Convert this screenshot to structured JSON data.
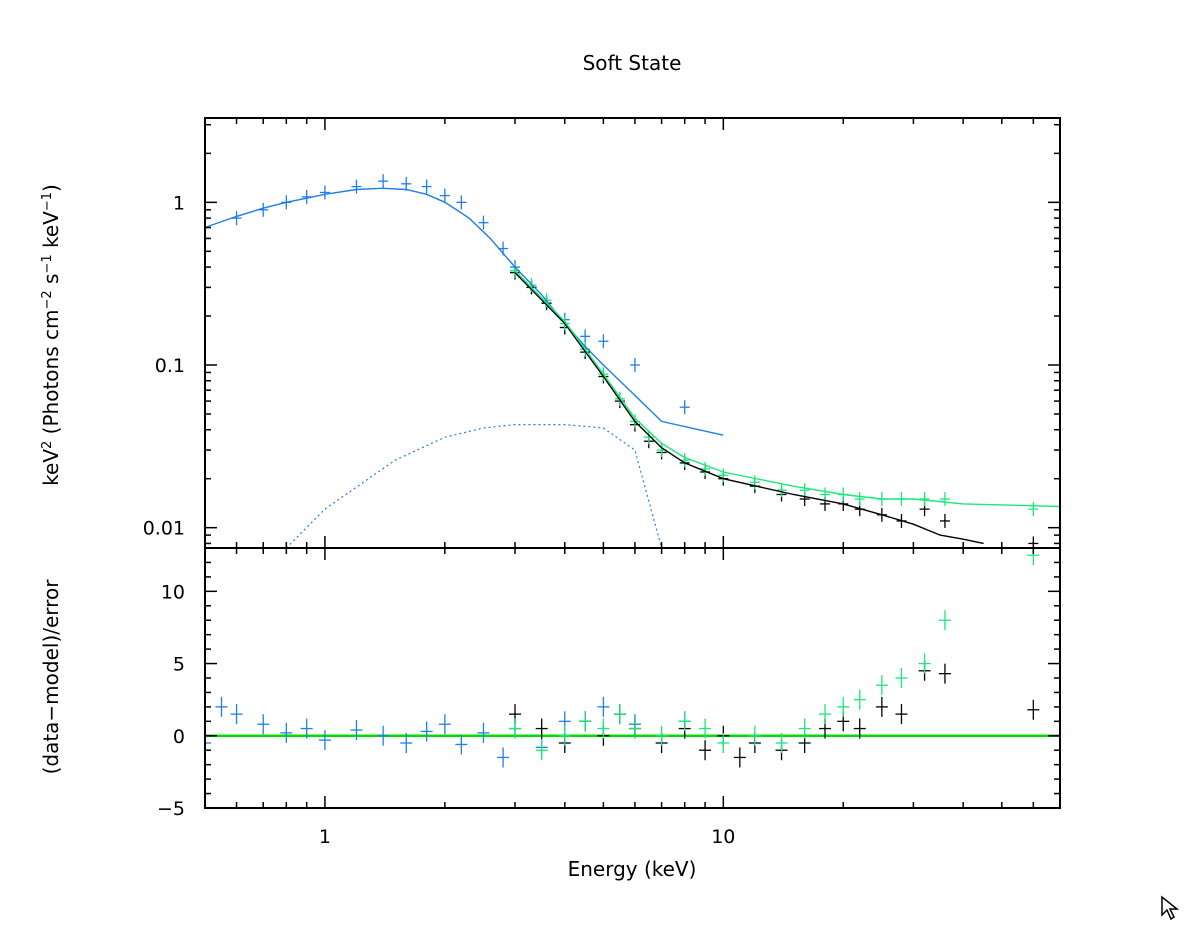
{
  "chart_data": {
    "type": "scatter",
    "title": "Soft State",
    "colors": {
      "spectrum_a": "#1e7fe8",
      "spectrum_b": "#000000",
      "spectrum_c": "#19e87a",
      "zero_line": "#00dd00",
      "axes": "#000000"
    },
    "xlabel": "Energy (keV)",
    "xscale": "log",
    "xlim": [
      0.5,
      70
    ],
    "x_ticks": [
      1,
      10
    ],
    "x_tick_labels": [
      "1",
      "10"
    ],
    "panels": [
      {
        "id": "spectrum",
        "ylabel": "keV² (Photons cm⁻² s⁻¹ keV⁻¹)",
        "ylabel_parts": {
          "pre": "keV",
          "sup1": "2",
          "mid1": " (Photons cm",
          "sup2": "−2",
          "mid2": " s",
          "sup3": "−1",
          "mid3": " keV",
          "sup4": "−1",
          "end": ")"
        },
        "yscale": "log",
        "ylim": [
          0.0075,
          3.3
        ],
        "y_ticks": [
          0.01,
          0.1,
          1
        ],
        "y_tick_labels": [
          "0.01",
          "0.1",
          "1"
        ],
        "series": [
          {
            "name": "spectrum_a",
            "color": "#1e7fe8",
            "kind": "data",
            "x": [
              0.5,
              0.6,
              0.7,
              0.8,
              0.9,
              1.0,
              1.2,
              1.4,
              1.6,
              1.8,
              2.0,
              2.2,
              2.5,
              2.8,
              3.0,
              3.3,
              3.6,
              4.0,
              4.5,
              5.0,
              6.0,
              8.0
            ],
            "y": [
              0.6,
              0.8,
              0.9,
              1.0,
              1.08,
              1.15,
              1.25,
              1.35,
              1.3,
              1.25,
              1.1,
              1.0,
              0.75,
              0.52,
              0.4,
              0.3,
              0.24,
              0.19,
              0.15,
              0.14,
              0.1,
              0.055
            ]
          },
          {
            "name": "spectrum_b",
            "color": "#000000",
            "kind": "data",
            "x": [
              3.0,
              3.3,
              3.6,
              4.0,
              4.5,
              5.0,
              5.5,
              6.0,
              6.5,
              7.0,
              8.0,
              9.0,
              10.0,
              12.0,
              14.0,
              16.0,
              18.0,
              20.0,
              22.0,
              25.0,
              28.0,
              32.0,
              36.0,
              60.0
            ],
            "y": [
              0.37,
              0.3,
              0.24,
              0.17,
              0.12,
              0.085,
              0.06,
              0.043,
              0.034,
              0.029,
              0.025,
              0.022,
              0.02,
              0.018,
              0.016,
              0.015,
              0.014,
              0.014,
              0.013,
              0.012,
              0.011,
              0.013,
              0.011,
              0.008
            ]
          },
          {
            "name": "spectrum_c",
            "color": "#19e87a",
            "kind": "data",
            "x": [
              3.0,
              3.3,
              3.6,
              4.0,
              4.5,
              5.0,
              5.5,
              6.0,
              6.5,
              7.0,
              8.0,
              9.0,
              10.0,
              12.0,
              14.0,
              16.0,
              18.0,
              20.0,
              22.0,
              25.0,
              28.0,
              32.0,
              36.0,
              60.0
            ],
            "y": [
              0.38,
              0.31,
              0.25,
              0.18,
              0.125,
              0.088,
              0.062,
              0.045,
              0.036,
              0.03,
              0.026,
              0.023,
              0.021,
              0.019,
              0.017,
              0.017,
              0.016,
              0.016,
              0.015,
              0.015,
              0.015,
              0.015,
              0.015,
              0.013
            ]
          },
          {
            "name": "model_a_total",
            "color": "#1e7fe8",
            "kind": "model",
            "x": [
              0.5,
              0.6,
              0.7,
              0.8,
              0.9,
              1.0,
              1.2,
              1.4,
              1.6,
              1.8,
              2.0,
              2.3,
              2.6,
              3.0,
              3.5,
              4.0,
              4.5,
              5.0,
              6.0,
              7.0,
              10.0
            ],
            "y": [
              0.7,
              0.82,
              0.92,
              1.0,
              1.06,
              1.12,
              1.2,
              1.22,
              1.2,
              1.12,
              1.0,
              0.8,
              0.6,
              0.4,
              0.27,
              0.18,
              0.13,
              0.1,
              0.065,
              0.045,
              0.037
            ]
          },
          {
            "name": "model_a_component",
            "color": "#1e7fe8",
            "kind": "component",
            "x": [
              0.8,
              1.0,
              1.5,
              2.0,
              2.5,
              3.0,
              4.0,
              5.0,
              6.0,
              7.0
            ],
            "y": [
              0.0075,
              0.013,
              0.026,
              0.036,
              0.041,
              0.043,
              0.043,
              0.041,
              0.03,
              0.0075
            ]
          },
          {
            "name": "model_b_total",
            "color": "#000000",
            "kind": "model",
            "x": [
              3.0,
              4.0,
              5.0,
              6.0,
              7.0,
              8.0,
              10.0,
              15.0,
              20.0,
              25.0,
              30.0,
              35.0,
              40.0,
              45.0
            ],
            "y": [
              0.37,
              0.18,
              0.085,
              0.045,
              0.031,
              0.025,
              0.02,
              0.016,
              0.014,
              0.012,
              0.0105,
              0.009,
              0.0085,
              0.008
            ]
          },
          {
            "name": "model_c_total",
            "color": "#19e87a",
            "kind": "model",
            "x": [
              3.0,
              4.0,
              5.0,
              6.0,
              7.0,
              8.0,
              10.0,
              15.0,
              20.0,
              25.0,
              30.0,
              40.0,
              70.0
            ],
            "y": [
              0.38,
              0.185,
              0.088,
              0.047,
              0.033,
              0.027,
              0.022,
              0.018,
              0.016,
              0.015,
              0.015,
              0.014,
              0.0135
            ]
          }
        ]
      },
      {
        "id": "residuals",
        "ylabel": "(data−model)/error",
        "yscale": "linear",
        "ylim": [
          -5,
          13
        ],
        "y_ticks": [
          -5,
          0,
          5,
          10
        ],
        "y_tick_labels": [
          "−5",
          "0",
          "5",
          "10"
        ],
        "series": [
          {
            "name": "residual_a",
            "color": "#1e7fe8",
            "x": [
              0.5,
              0.55,
              0.6,
              0.7,
              0.8,
              0.9,
              1.0,
              1.2,
              1.4,
              1.6,
              1.8,
              2.0,
              2.2,
              2.5,
              2.8,
              3.0,
              3.5,
              4.0,
              5.0,
              6.0,
              8.0
            ],
            "y": [
              -0.5,
              2.0,
              1.5,
              0.8,
              0.2,
              0.5,
              -0.3,
              0.4,
              0.0,
              -0.5,
              0.3,
              0.8,
              -0.6,
              0.2,
              -1.5,
              0.5,
              -0.8,
              1.0,
              2.0,
              0.8,
              1.0
            ]
          },
          {
            "name": "residual_b",
            "color": "#000000",
            "x": [
              3.0,
              3.5,
              4.0,
              4.5,
              5.0,
              5.5,
              6.0,
              7.0,
              8.0,
              9.0,
              10.0,
              11.0,
              12.0,
              14.0,
              16.0,
              18.0,
              20.0,
              22.0,
              25.0,
              28.0,
              32.0,
              36.0,
              60.0
            ],
            "y": [
              1.5,
              0.5,
              -0.5,
              1.0,
              0.0,
              1.5,
              0.5,
              -0.5,
              0.5,
              -1.0,
              0.0,
              -1.5,
              -0.5,
              -1.0,
              -0.5,
              0.5,
              1.0,
              0.5,
              2.0,
              1.5,
              4.5,
              4.3,
              1.8
            ]
          },
          {
            "name": "residual_c",
            "color": "#19e87a",
            "x": [
              3.0,
              3.5,
              4.0,
              4.5,
              5.0,
              5.5,
              6.0,
              7.0,
              8.0,
              9.0,
              10.0,
              12.0,
              14.0,
              16.0,
              18.0,
              20.0,
              22.0,
              25.0,
              28.0,
              32.0,
              36.0,
              60.0
            ],
            "y": [
              0.5,
              -1.0,
              0.0,
              1.0,
              0.5,
              1.5,
              0.5,
              0.0,
              1.0,
              0.5,
              -0.5,
              0.0,
              -0.5,
              0.5,
              1.5,
              2.0,
              2.5,
              3.5,
              4.0,
              5.0,
              8.0,
              12.5
            ]
          }
        ]
      }
    ]
  }
}
